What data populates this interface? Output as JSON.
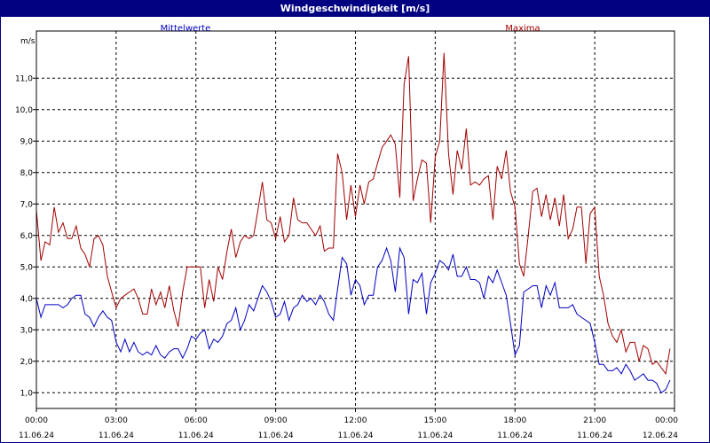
{
  "window": {
    "title": "Windgeschwindigkeit [m/s]"
  },
  "chart_data": {
    "type": "line",
    "ylabel": "m/s",
    "ylim": [
      0.5,
      12.5
    ],
    "xlim": [
      0,
      24
    ],
    "y_ticks": [
      {
        "value": 1,
        "label": "1,0"
      },
      {
        "value": 2,
        "label": "2,0"
      },
      {
        "value": 3,
        "label": "3,0"
      },
      {
        "value": 4,
        "label": "4,0"
      },
      {
        "value": 5,
        "label": "5,0"
      },
      {
        "value": 6,
        "label": "6,0"
      },
      {
        "value": 7,
        "label": "7,0"
      },
      {
        "value": 8,
        "label": "8,0"
      },
      {
        "value": 9,
        "label": "9,0"
      },
      {
        "value": 10,
        "label": "10,0"
      },
      {
        "value": 11,
        "label": "11,0"
      }
    ],
    "x_ticks": [
      {
        "value": 0,
        "time": "00:00",
        "date": "11.06.24"
      },
      {
        "value": 3,
        "time": "03:00",
        "date": "11.06.24"
      },
      {
        "value": 6,
        "time": "06:00",
        "date": "11.06.24"
      },
      {
        "value": 9,
        "time": "09:00",
        "date": "11.06.24"
      },
      {
        "value": 12,
        "time": "12:00",
        "date": "11.06.24"
      },
      {
        "value": 15,
        "time": "15:00",
        "date": "11.06.24"
      },
      {
        "value": 18,
        "time": "18:00",
        "date": "11.06.24"
      },
      {
        "value": 21,
        "time": "21:00",
        "date": "11.06.24"
      },
      {
        "value": 24,
        "time": "00:00",
        "date": "12.06.24"
      }
    ],
    "grid": true,
    "legend": "top",
    "series": [
      {
        "name": "Mittelwerte",
        "color": "#0000c0",
        "points": [
          [
            0.0,
            4.0
          ],
          [
            0.17,
            3.4
          ],
          [
            0.33,
            3.8
          ],
          [
            0.5,
            3.8
          ],
          [
            0.67,
            3.8
          ],
          [
            0.83,
            3.8
          ],
          [
            1.0,
            3.7
          ],
          [
            1.17,
            3.8
          ],
          [
            1.33,
            4.0
          ],
          [
            1.5,
            4.1
          ],
          [
            1.67,
            4.1
          ],
          [
            1.83,
            3.5
          ],
          [
            2.0,
            3.4
          ],
          [
            2.17,
            3.1
          ],
          [
            2.33,
            3.4
          ],
          [
            2.5,
            3.6
          ],
          [
            2.67,
            3.4
          ],
          [
            2.83,
            3.3
          ],
          [
            3.0,
            2.6
          ],
          [
            3.17,
            2.3
          ],
          [
            3.33,
            2.7
          ],
          [
            3.5,
            2.3
          ],
          [
            3.67,
            2.6
          ],
          [
            3.83,
            2.3
          ],
          [
            4.0,
            2.2
          ],
          [
            4.17,
            2.3
          ],
          [
            4.33,
            2.2
          ],
          [
            4.5,
            2.5
          ],
          [
            4.67,
            2.2
          ],
          [
            4.83,
            2.1
          ],
          [
            5.0,
            2.3
          ],
          [
            5.17,
            2.4
          ],
          [
            5.33,
            2.4
          ],
          [
            5.5,
            2.1
          ],
          [
            5.67,
            2.4
          ],
          [
            5.83,
            2.8
          ],
          [
            6.0,
            2.7
          ],
          [
            6.17,
            2.9
          ],
          [
            6.33,
            3.0
          ],
          [
            6.5,
            2.4
          ],
          [
            6.67,
            2.7
          ],
          [
            6.83,
            2.6
          ],
          [
            7.0,
            2.8
          ],
          [
            7.17,
            3.2
          ],
          [
            7.33,
            3.3
          ],
          [
            7.5,
            3.7
          ],
          [
            7.67,
            3.0
          ],
          [
            7.83,
            3.3
          ],
          [
            8.0,
            3.8
          ],
          [
            8.17,
            3.6
          ],
          [
            8.33,
            4.0
          ],
          [
            8.5,
            4.4
          ],
          [
            8.67,
            4.2
          ],
          [
            8.83,
            3.9
          ],
          [
            9.0,
            3.4
          ],
          [
            9.17,
            3.5
          ],
          [
            9.33,
            3.9
          ],
          [
            9.5,
            3.3
          ],
          [
            9.67,
            3.7
          ],
          [
            9.83,
            3.8
          ],
          [
            10.0,
            4.1
          ],
          [
            10.17,
            3.9
          ],
          [
            10.33,
            4.0
          ],
          [
            10.5,
            3.8
          ],
          [
            10.67,
            4.1
          ],
          [
            10.83,
            3.9
          ],
          [
            11.0,
            3.5
          ],
          [
            11.17,
            3.3
          ],
          [
            11.33,
            4.3
          ],
          [
            11.5,
            5.3
          ],
          [
            11.67,
            5.1
          ],
          [
            11.83,
            4.1
          ],
          [
            12.0,
            4.6
          ],
          [
            12.17,
            4.4
          ],
          [
            12.33,
            3.8
          ],
          [
            12.5,
            4.1
          ],
          [
            12.67,
            4.1
          ],
          [
            12.83,
            5.0
          ],
          [
            13.0,
            5.2
          ],
          [
            13.17,
            5.6
          ],
          [
            13.33,
            5.2
          ],
          [
            13.5,
            4.2
          ],
          [
            13.67,
            5.6
          ],
          [
            13.83,
            5.3
          ],
          [
            14.0,
            3.5
          ],
          [
            14.17,
            4.6
          ],
          [
            14.33,
            4.5
          ],
          [
            14.5,
            4.8
          ],
          [
            14.67,
            3.5
          ],
          [
            14.83,
            4.5
          ],
          [
            15.0,
            4.8
          ],
          [
            15.17,
            5.2
          ],
          [
            15.33,
            5.1
          ],
          [
            15.5,
            4.9
          ],
          [
            15.67,
            5.4
          ],
          [
            15.83,
            4.7
          ],
          [
            16.0,
            4.7
          ],
          [
            16.17,
            5.0
          ],
          [
            16.33,
            4.6
          ],
          [
            16.5,
            4.6
          ],
          [
            16.67,
            4.5
          ],
          [
            16.83,
            4.0
          ],
          [
            17.0,
            4.7
          ],
          [
            17.17,
            4.5
          ],
          [
            17.33,
            4.9
          ],
          [
            17.5,
            4.5
          ],
          [
            17.67,
            4.1
          ],
          [
            17.83,
            3.2
          ],
          [
            18.0,
            2.2
          ],
          [
            18.17,
            2.5
          ],
          [
            18.33,
            4.2
          ],
          [
            18.5,
            4.3
          ],
          [
            18.67,
            4.4
          ],
          [
            18.83,
            4.4
          ],
          [
            19.0,
            3.7
          ],
          [
            19.17,
            4.4
          ],
          [
            19.33,
            4.1
          ],
          [
            19.5,
            4.5
          ],
          [
            19.67,
            3.7
          ],
          [
            19.83,
            3.7
          ],
          [
            20.0,
            3.7
          ],
          [
            20.17,
            3.8
          ],
          [
            20.33,
            3.5
          ],
          [
            20.5,
            3.4
          ],
          [
            20.67,
            3.3
          ],
          [
            20.83,
            3.2
          ],
          [
            21.0,
            2.6
          ],
          [
            21.17,
            1.9
          ],
          [
            21.33,
            1.9
          ],
          [
            21.5,
            1.7
          ],
          [
            21.67,
            1.7
          ],
          [
            21.83,
            1.8
          ],
          [
            22.0,
            1.6
          ],
          [
            22.17,
            1.9
          ],
          [
            22.33,
            1.7
          ],
          [
            22.5,
            1.4
          ],
          [
            22.67,
            1.5
          ],
          [
            22.83,
            1.6
          ],
          [
            23.0,
            1.4
          ],
          [
            23.17,
            1.4
          ],
          [
            23.33,
            1.3
          ],
          [
            23.5,
            1.0
          ],
          [
            23.67,
            1.1
          ],
          [
            23.83,
            1.4
          ]
        ]
      },
      {
        "name": "Maxima",
        "color": "#a00000",
        "points": [
          [
            0.0,
            6.8
          ],
          [
            0.17,
            5.2
          ],
          [
            0.33,
            5.8
          ],
          [
            0.5,
            5.7
          ],
          [
            0.67,
            6.9
          ],
          [
            0.83,
            6.1
          ],
          [
            1.0,
            6.4
          ],
          [
            1.17,
            5.9
          ],
          [
            1.33,
            5.9
          ],
          [
            1.5,
            6.3
          ],
          [
            1.67,
            5.6
          ],
          [
            1.83,
            5.4
          ],
          [
            2.0,
            5.0
          ],
          [
            2.17,
            5.9
          ],
          [
            2.33,
            6.0
          ],
          [
            2.5,
            5.7
          ],
          [
            2.67,
            4.7
          ],
          [
            2.83,
            4.2
          ],
          [
            3.0,
            3.7
          ],
          [
            3.17,
            4.0
          ],
          [
            3.33,
            4.1
          ],
          [
            3.5,
            4.2
          ],
          [
            3.67,
            4.3
          ],
          [
            3.83,
            4.0
          ],
          [
            4.0,
            3.5
          ],
          [
            4.17,
            3.5
          ],
          [
            4.33,
            4.3
          ],
          [
            4.5,
            3.8
          ],
          [
            4.67,
            4.2
          ],
          [
            4.83,
            3.7
          ],
          [
            5.0,
            4.4
          ],
          [
            5.17,
            3.6
          ],
          [
            5.33,
            3.1
          ],
          [
            5.5,
            4.2
          ],
          [
            5.67,
            5.0
          ],
          [
            5.83,
            5.0
          ],
          [
            6.0,
            5.0
          ],
          [
            6.17,
            5.0
          ],
          [
            6.33,
            3.7
          ],
          [
            6.5,
            4.6
          ],
          [
            6.67,
            3.9
          ],
          [
            6.83,
            5.0
          ],
          [
            7.0,
            4.6
          ],
          [
            7.17,
            5.5
          ],
          [
            7.33,
            6.2
          ],
          [
            7.5,
            5.3
          ],
          [
            7.67,
            5.8
          ],
          [
            7.83,
            6.0
          ],
          [
            8.0,
            5.9
          ],
          [
            8.17,
            6.0
          ],
          [
            8.33,
            6.8
          ],
          [
            8.5,
            7.7
          ],
          [
            8.67,
            6.5
          ],
          [
            8.83,
            6.4
          ],
          [
            9.0,
            5.9
          ],
          [
            9.17,
            6.6
          ],
          [
            9.33,
            5.8
          ],
          [
            9.5,
            6.0
          ],
          [
            9.67,
            7.2
          ],
          [
            9.83,
            6.5
          ],
          [
            10.0,
            6.4
          ],
          [
            10.17,
            6.4
          ],
          [
            10.33,
            6.2
          ],
          [
            10.5,
            6.0
          ],
          [
            10.67,
            6.3
          ],
          [
            10.83,
            5.5
          ],
          [
            11.0,
            5.6
          ],
          [
            11.17,
            5.6
          ],
          [
            11.33,
            8.6
          ],
          [
            11.5,
            8.0
          ],
          [
            11.67,
            6.5
          ],
          [
            11.83,
            7.6
          ],
          [
            12.0,
            6.6
          ],
          [
            12.17,
            7.6
          ],
          [
            12.33,
            7.0
          ],
          [
            12.5,
            7.7
          ],
          [
            12.67,
            7.8
          ],
          [
            12.83,
            8.3
          ],
          [
            13.0,
            8.8
          ],
          [
            13.17,
            9.0
          ],
          [
            13.33,
            9.2
          ],
          [
            13.5,
            8.9
          ],
          [
            13.67,
            7.2
          ],
          [
            13.83,
            10.8
          ],
          [
            14.0,
            11.7
          ],
          [
            14.17,
            7.1
          ],
          [
            14.33,
            7.8
          ],
          [
            14.5,
            8.4
          ],
          [
            14.67,
            8.3
          ],
          [
            14.83,
            6.4
          ],
          [
            15.0,
            8.5
          ],
          [
            15.17,
            9.0
          ],
          [
            15.33,
            11.8
          ],
          [
            15.5,
            8.6
          ],
          [
            15.67,
            7.3
          ],
          [
            15.83,
            8.7
          ],
          [
            16.0,
            8.1
          ],
          [
            16.17,
            9.4
          ],
          [
            16.33,
            7.6
          ],
          [
            16.5,
            7.7
          ],
          [
            16.67,
            7.6
          ],
          [
            16.83,
            7.8
          ],
          [
            17.0,
            7.9
          ],
          [
            17.17,
            6.5
          ],
          [
            17.33,
            8.2
          ],
          [
            17.5,
            7.8
          ],
          [
            17.67,
            8.7
          ],
          [
            17.83,
            7.4
          ],
          [
            18.0,
            6.9
          ],
          [
            18.17,
            5.1
          ],
          [
            18.33,
            4.7
          ],
          [
            18.5,
            6.0
          ],
          [
            18.67,
            7.4
          ],
          [
            18.83,
            7.5
          ],
          [
            19.0,
            6.6
          ],
          [
            19.17,
            7.3
          ],
          [
            19.33,
            6.5
          ],
          [
            19.5,
            7.2
          ],
          [
            19.67,
            6.3
          ],
          [
            19.83,
            7.3
          ],
          [
            20.0,
            5.9
          ],
          [
            20.17,
            6.2
          ],
          [
            20.33,
            6.9
          ],
          [
            20.5,
            6.9
          ],
          [
            20.67,
            5.1
          ],
          [
            20.83,
            6.7
          ],
          [
            21.0,
            6.9
          ],
          [
            21.17,
            4.7
          ],
          [
            21.33,
            4.1
          ],
          [
            21.5,
            3.2
          ],
          [
            21.67,
            2.8
          ],
          [
            21.83,
            2.6
          ],
          [
            22.0,
            3.0
          ],
          [
            22.17,
            2.3
          ],
          [
            22.33,
            2.6
          ],
          [
            22.5,
            2.6
          ],
          [
            22.67,
            2.0
          ],
          [
            22.83,
            2.5
          ],
          [
            23.0,
            2.4
          ],
          [
            23.17,
            1.9
          ],
          [
            23.33,
            2.0
          ],
          [
            23.5,
            1.8
          ],
          [
            23.67,
            1.6
          ],
          [
            23.83,
            2.4
          ]
        ]
      }
    ]
  }
}
